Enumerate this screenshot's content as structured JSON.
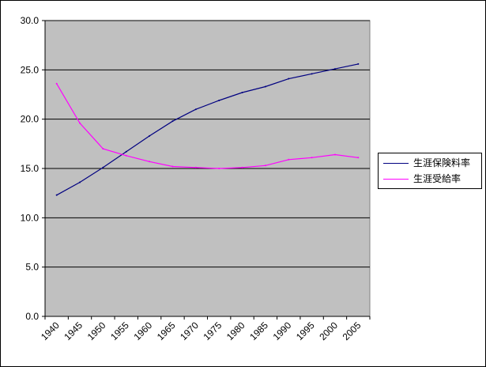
{
  "chart_data": {
    "type": "line",
    "title": "",
    "xlabel": "",
    "ylabel": "",
    "categories": [
      "1940",
      "1945",
      "1950",
      "1955",
      "1960",
      "1965",
      "1970",
      "1975",
      "1980",
      "1985",
      "1990",
      "1995",
      "2000",
      "2005"
    ],
    "y_tick_labels": [
      "0.0",
      "5.0",
      "10.0",
      "15.0",
      "20.0",
      "25.0",
      "30.0"
    ],
    "ylim": [
      0,
      30
    ],
    "ytick_step": 5,
    "grid": true,
    "legend_placement": "right",
    "plot_background": "#c0c0c0",
    "series": [
      {
        "name": "生涯保険料率",
        "color": "#000080",
        "values": [
          12.3,
          13.6,
          15.1,
          16.7,
          18.3,
          19.8,
          21.0,
          21.9,
          22.7,
          23.3,
          24.1,
          24.6,
          25.1,
          25.6
        ]
      },
      {
        "name": "生涯受給率",
        "color": "#ff00ff",
        "values": [
          23.6,
          19.6,
          17.0,
          16.3,
          15.7,
          15.2,
          15.1,
          15.0,
          15.1,
          15.3,
          15.9,
          16.1,
          16.4,
          16.1
        ]
      }
    ]
  }
}
